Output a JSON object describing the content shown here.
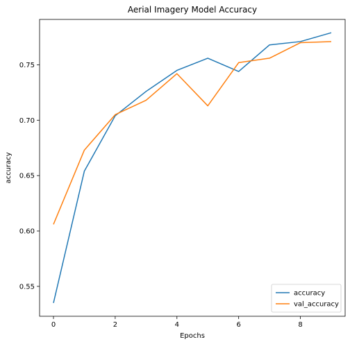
{
  "chart_data": {
    "type": "line",
    "title": "Aerial Imagery Model Accuracy",
    "xlabel": "Epochs",
    "ylabel": "accuracy",
    "x": [
      0,
      1,
      2,
      3,
      4,
      5,
      6,
      7,
      8,
      9
    ],
    "series": [
      {
        "name": "accuracy",
        "color": "#1f77b4",
        "values": [
          0.535,
          0.654,
          0.704,
          0.726,
          0.745,
          0.756,
          0.744,
          0.768,
          0.771,
          0.779
        ]
      },
      {
        "name": "val_accuracy",
        "color": "#ff7f0e",
        "values": [
          0.606,
          0.673,
          0.705,
          0.718,
          0.742,
          0.713,
          0.752,
          0.756,
          0.77,
          0.771
        ]
      }
    ],
    "xlim": [
      -0.45,
      9.45
    ],
    "ylim": [
      0.523,
      0.791
    ],
    "xticks": [
      0,
      2,
      4,
      6,
      8
    ],
    "yticks": [
      0.55,
      0.6,
      0.65,
      0.7,
      0.75
    ],
    "ytick_labels": [
      "0.55",
      "0.60",
      "0.65",
      "0.70",
      "0.75"
    ],
    "legend_position": "lower-right",
    "grid": false
  }
}
